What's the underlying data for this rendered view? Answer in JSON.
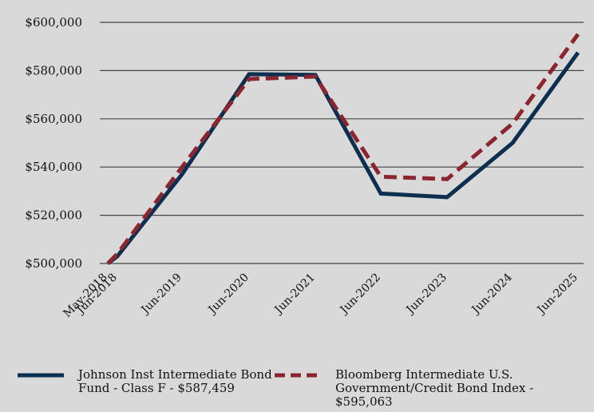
{
  "chart_data": {
    "type": "line",
    "title": "",
    "xlabel": "",
    "ylabel": "",
    "categories": [
      "May-2018",
      "Jun-2018",
      "Jun-2019",
      "Jun-2020",
      "Jun-2021",
      "Jun-2022",
      "Jun-2023",
      "Jun-2024",
      "Jun-2025"
    ],
    "y_ticks": [
      500000,
      520000,
      540000,
      560000,
      580000,
      600000
    ],
    "y_tick_labels": [
      "$500,000",
      "$520,000",
      "$540,000",
      "$560,000",
      "$580,000",
      "$600,000"
    ],
    "ylim": [
      500000,
      600000
    ],
    "grid": true,
    "series": [
      {
        "name": "Johnson Inst Intermediate Bond Fund - Class F - $587,459",
        "color": "#0d2f4f",
        "style": "solid",
        "values": [
          500000,
          503000,
          537000,
          578500,
          578200,
          529000,
          527500,
          550000,
          587459
        ]
      },
      {
        "name": "Bloomberg Intermediate U.S. Government/Credit Bond Index - $595,063",
        "color": "#8b2530",
        "style": "dashed",
        "values": [
          500000,
          504000,
          540000,
          576500,
          577500,
          536000,
          535000,
          558000,
          595063
        ]
      }
    ]
  }
}
